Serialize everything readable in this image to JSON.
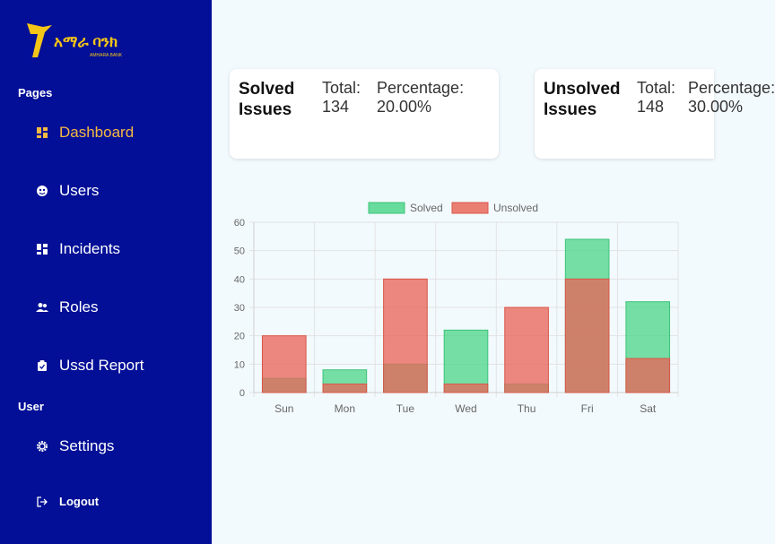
{
  "logo": {
    "mark": "ባ",
    "name": "አማራ ባንክ",
    "sub": "AMHARA BANK"
  },
  "sidebar": {
    "pages_label": "Pages",
    "items": [
      {
        "label": "Dashboard",
        "icon": "dashboard-icon"
      },
      {
        "label": "Users",
        "icon": "users-icon"
      },
      {
        "label": "Incidents",
        "icon": "incidents-icon"
      },
      {
        "label": "Roles",
        "icon": "roles-icon"
      },
      {
        "label": "Ussd Report",
        "icon": "report-icon"
      }
    ],
    "user_label": "User",
    "settings_label": "Settings",
    "logout_label": "Logout"
  },
  "cards": {
    "solved": {
      "title": "Solved Issues",
      "total_label": "Total:",
      "total_value": "134",
      "pct_label": "Percentage:",
      "pct_value": "20.00%"
    },
    "unsolved": {
      "title": "Unsolved Issues",
      "total_label": "Total:",
      "total_value": "148",
      "pct_label": "Percentage:",
      "pct_value": "30.00%"
    }
  },
  "colors": {
    "sidebar": "#020f96",
    "accent": "#f5b942",
    "solved": "#4fd68b",
    "unsolved": "#e8675a"
  },
  "chart_data": {
    "type": "bar",
    "categories": [
      "Sun",
      "Mon",
      "Tue",
      "Wed",
      "Thu",
      "Fri",
      "Sat"
    ],
    "series": [
      {
        "name": "Solved",
        "values": [
          5,
          8,
          10,
          22,
          3,
          54,
          32
        ]
      },
      {
        "name": "Unsolved",
        "values": [
          20,
          3,
          40,
          3,
          30,
          40,
          12
        ]
      }
    ],
    "ylim": [
      0,
      60
    ],
    "yticks": [
      0,
      10,
      20,
      30,
      40,
      50,
      60
    ],
    "grid": true,
    "legend": "top"
  }
}
